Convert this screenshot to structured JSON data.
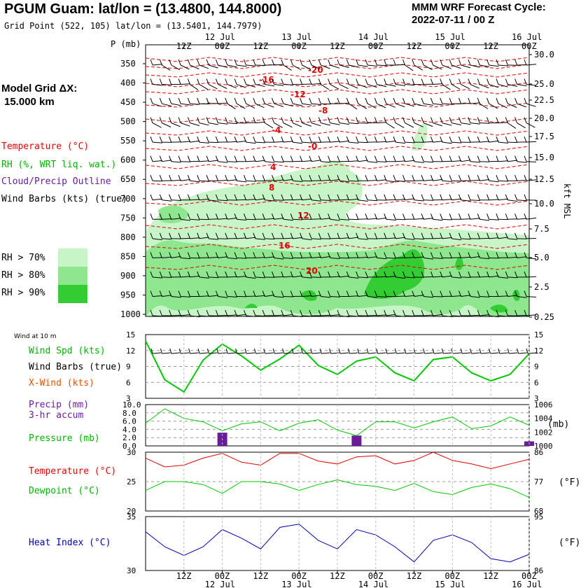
{
  "header": {
    "title": "PGUM Guam:  lat/lon = (13.4800, 144.8000)",
    "grid_point": "Grid Point (522, 105) lat/lon = (13.5401, 144.7979)",
    "cycle_line1": "MMM WRF Forecast Cycle:",
    "cycle_line2": "2022-07-11 / 00  Z"
  },
  "left_panel": {
    "model_grid_line1": "Model Grid ΔX:",
    "model_grid_line2": "15.000 km",
    "legend_temperature": "Temperature (°C)",
    "legend_rh": "RH (%, WRT liq. wat.)",
    "legend_cloud": "Cloud/Precip Outline",
    "legend_barbs": "Wind Barbs (kts) (true)",
    "rh_70": "RH > 70%",
    "rh_80": "RH > 80%",
    "rh_90": "RH > 90%",
    "p_unit": "P (mb)",
    "kft_label": "kft MSL"
  },
  "colors": {
    "temperature": "#e00000",
    "rh70": "#c8f5c8",
    "rh80": "#8ee68e",
    "rh90": "#33cc33",
    "wind_speed": "#00c800",
    "xwind": "#e05000",
    "precip": "#6a1b9a",
    "pressure": "#00c800",
    "dewpoint": "#00c800",
    "heat_index": "#0000b0"
  },
  "time_axis": {
    "top_dates": [
      "12 Jul",
      "13 Jul",
      "14 Jul",
      "15 Jul",
      "16 Jul"
    ],
    "tick_labels": [
      "12Z",
      "00Z",
      "12Z",
      "00Z",
      "12Z",
      "00Z",
      "12Z",
      "00Z",
      "12Z",
      "00Z"
    ],
    "bottom_dates": [
      "12 Jul",
      "13 Jul",
      "14 Jul",
      "15 Jul",
      "16 Jul"
    ]
  },
  "chart_data": [
    {
      "type": "heatmap",
      "panel": "pressure-time cross section",
      "y_axis_left_ticks": [
        "350",
        "400",
        "450",
        "500",
        "550",
        "600",
        "650",
        "700",
        "750",
        "800",
        "850",
        "900",
        "950",
        "1000"
      ],
      "y_axis_right_ticks": [
        "30.0",
        "25.0",
        "22.5",
        "20.0",
        "17.5",
        "15.0",
        "12.5",
        "10.0",
        "7.5",
        "5.0",
        "2.5",
        "0.25"
      ],
      "temperature_contour_labels": [
        "-20",
        "-16",
        "-12",
        "-8",
        "-4",
        "-0",
        "4",
        "8",
        "12",
        "16",
        "20"
      ]
    },
    {
      "type": "line",
      "panel": "wind at 10 m",
      "panel_label": "Wind at 10 m",
      "legend": [
        "Wind Spd (kts)",
        "Wind Barbs (true)",
        "X-Wind (kts)"
      ],
      "y_ticks_left": [
        "15",
        "12",
        "9",
        "6",
        "3"
      ],
      "y_ticks_right": [
        "15",
        "12",
        "9",
        "6",
        "3"
      ],
      "ylim": [
        3,
        15
      ],
      "series": [
        {
          "name": "Wind Spd (kts)",
          "x_hours": [
            0,
            6,
            12,
            18,
            24,
            30,
            36,
            42,
            48,
            54,
            60,
            66,
            72,
            78,
            84,
            90,
            96,
            102,
            108,
            114,
            120
          ],
          "values": [
            13.8,
            6.5,
            4.2,
            10.2,
            13.2,
            11,
            8.3,
            10.4,
            13,
            9.2,
            7.5,
            10,
            10.8,
            7.8,
            6.3,
            10.3,
            10.8,
            7.8,
            6.3,
            7.5,
            11.4
          ]
        }
      ]
    },
    {
      "type": "bar",
      "panel": "precip and pressure",
      "legend": [
        "Precip (mm)",
        "3-hr accum",
        "Pressure (mb)"
      ],
      "y_ticks_left": [
        "10.0",
        "8.0",
        "6.0",
        "4.0",
        "2.0",
        "0.0"
      ],
      "y_ticks_right": [
        "1006",
        "1004",
        "1002",
        "1000"
      ],
      "right_unit": "(mb)",
      "precip_series": {
        "name": "Precip (mm)",
        "x_hours": [
          24,
          66,
          120
        ],
        "values": [
          3.2,
          2.5,
          1.1
        ]
      },
      "pressure_series": {
        "name": "Pressure (mb)",
        "x_hours": [
          0,
          6,
          12,
          18,
          24,
          30,
          36,
          42,
          48,
          54,
          60,
          66,
          72,
          78,
          84,
          90,
          96,
          102,
          108,
          114,
          120
        ],
        "values": [
          1003.3,
          1005.4,
          1004,
          1003.5,
          1002.2,
          1003.2,
          1003.5,
          1002.2,
          1003.3,
          1003.8,
          1002.3,
          1001.5,
          1003.5,
          1003.5,
          1002.6,
          1003.5,
          1004.2,
          1002.5,
          1002.9,
          1004.2,
          1003
        ]
      }
    },
    {
      "type": "line",
      "panel": "temperature and dewpoint",
      "legend": [
        "Temperature (°C)",
        "Dewpoint (°C)"
      ],
      "y_ticks_left": [
        "30",
        "25",
        "20"
      ],
      "y_ticks_right": [
        "86",
        "77",
        "68"
      ],
      "right_unit": "(°F)",
      "ylim": [
        20,
        30
      ],
      "series": [
        {
          "name": "Temperature (°C)",
          "x_hours": [
            0,
            6,
            12,
            18,
            24,
            30,
            36,
            42,
            48,
            54,
            60,
            66,
            72,
            78,
            84,
            90,
            96,
            102,
            108,
            114,
            120
          ],
          "values": [
            29,
            27.5,
            27.8,
            29,
            29.8,
            28.3,
            27.8,
            29.8,
            29.8,
            28.5,
            28,
            29.2,
            29.4,
            28,
            28.6,
            30,
            28.6,
            28,
            27.2,
            28,
            28.8
          ]
        },
        {
          "name": "Dewpoint (°C)",
          "x_hours": [
            0,
            6,
            12,
            18,
            24,
            30,
            36,
            42,
            48,
            54,
            60,
            66,
            72,
            78,
            84,
            90,
            96,
            102,
            108,
            114,
            120
          ],
          "values": [
            23.5,
            25,
            25,
            24.5,
            23,
            25,
            25,
            24.6,
            23.5,
            24.5,
            25.3,
            24.5,
            24.2,
            23.5,
            24.7,
            23.3,
            22.8,
            24,
            24.6,
            23.8,
            22.3
          ]
        }
      ]
    },
    {
      "type": "line",
      "panel": "heat index",
      "legend": [
        "Heat Index (°C)"
      ],
      "y_ticks_left": [
        "35",
        "30"
      ],
      "y_ticks_right": [
        "95",
        "86"
      ],
      "right_unit": "(°F)",
      "ylim": [
        30,
        35
      ],
      "series": [
        {
          "name": "Heat Index (°C)",
          "x_hours": [
            0,
            6,
            12,
            18,
            24,
            30,
            36,
            42,
            48,
            54,
            60,
            66,
            72,
            78,
            84,
            90,
            96,
            102,
            108,
            114,
            120
          ],
          "values": [
            33.6,
            32.2,
            31.4,
            32.2,
            33.8,
            33,
            32,
            34,
            34.3,
            32.8,
            32,
            33.8,
            33.3,
            32.2,
            30.8,
            32.8,
            33.3,
            32.6,
            31.1,
            30.8,
            31.5
          ]
        }
      ]
    }
  ]
}
